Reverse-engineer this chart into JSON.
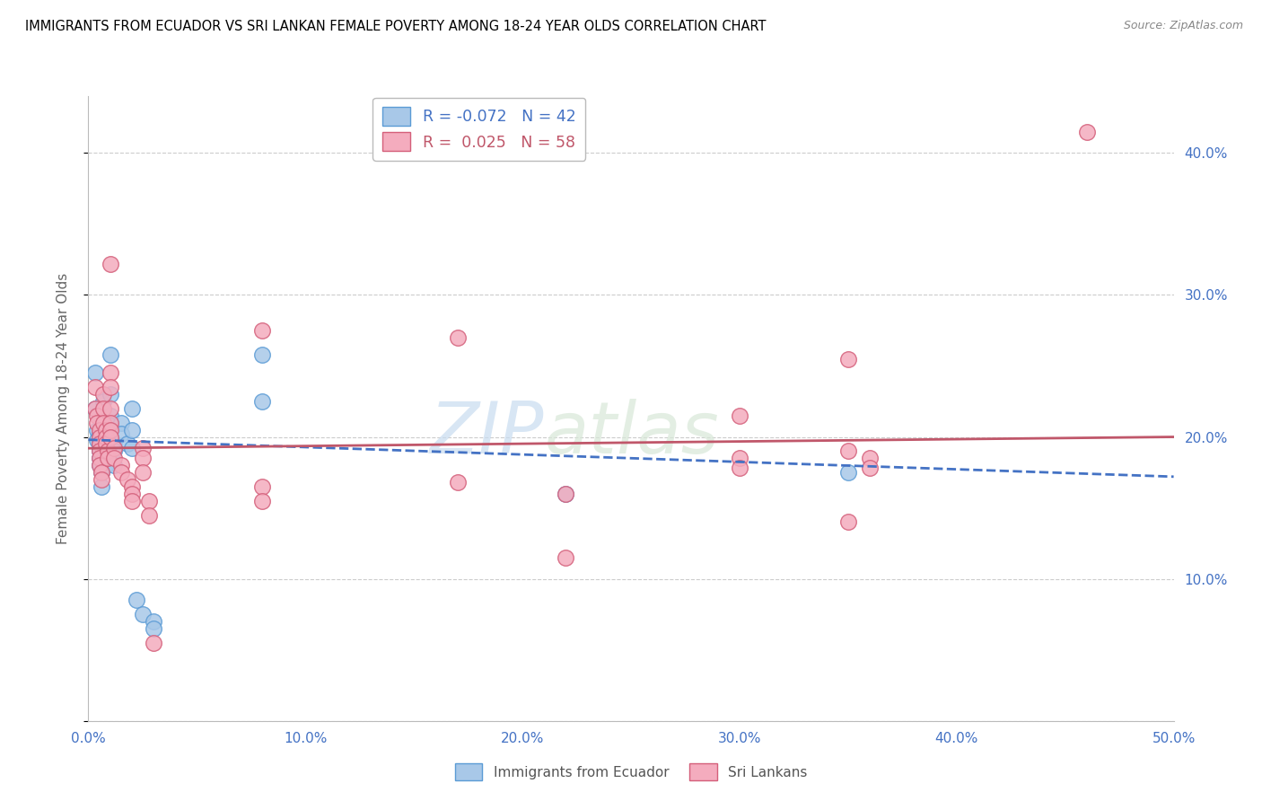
{
  "title": "IMMIGRANTS FROM ECUADOR VS SRI LANKAN FEMALE POVERTY AMONG 18-24 YEAR OLDS CORRELATION CHART",
  "source": "Source: ZipAtlas.com",
  "ylabel": "Female Poverty Among 18-24 Year Olds",
  "xlim": [
    0,
    50
  ],
  "ylim": [
    0,
    44
  ],
  "ecuador_color": "#A8C8E8",
  "srilanka_color": "#F4ACBE",
  "ecuador_edge": "#5B9BD5",
  "srilanka_edge": "#D45F7A",
  "trendline_ecuador_color": "#4472C4",
  "trendline_srilanka_color": "#C0576A",
  "watermark": "ZIPatlas",
  "ecuador_trendline": [
    [
      0,
      19.8
    ],
    [
      50,
      17.2
    ]
  ],
  "srilanka_trendline": [
    [
      0,
      19.2
    ],
    [
      50,
      20.0
    ]
  ],
  "ecuador_points": [
    [
      0.3,
      24.5
    ],
    [
      0.3,
      22.0
    ],
    [
      0.4,
      20.5
    ],
    [
      0.4,
      19.8
    ],
    [
      0.5,
      21.5
    ],
    [
      0.5,
      20.2
    ],
    [
      0.5,
      19.5
    ],
    [
      0.5,
      19.0
    ],
    [
      0.5,
      18.5
    ],
    [
      0.5,
      18.0
    ],
    [
      0.6,
      17.5
    ],
    [
      0.6,
      16.5
    ],
    [
      0.7,
      22.5
    ],
    [
      0.7,
      21.0
    ],
    [
      0.7,
      20.0
    ],
    [
      0.8,
      19.5
    ],
    [
      0.8,
      19.0
    ],
    [
      0.8,
      18.0
    ],
    [
      0.9,
      20.5
    ],
    [
      0.9,
      19.2
    ],
    [
      1.0,
      25.8
    ],
    [
      1.0,
      23.0
    ],
    [
      1.0,
      21.5
    ],
    [
      1.0,
      20.8
    ],
    [
      1.0,
      20.0
    ],
    [
      1.2,
      19.5
    ],
    [
      1.2,
      19.0
    ],
    [
      1.2,
      18.0
    ],
    [
      1.5,
      21.0
    ],
    [
      1.5,
      20.2
    ],
    [
      1.8,
      19.5
    ],
    [
      2.0,
      22.0
    ],
    [
      2.0,
      20.5
    ],
    [
      2.0,
      19.2
    ],
    [
      2.2,
      8.5
    ],
    [
      2.5,
      7.5
    ],
    [
      3.0,
      7.0
    ],
    [
      3.0,
      6.5
    ],
    [
      8.0,
      25.8
    ],
    [
      8.0,
      22.5
    ],
    [
      22.0,
      16.0
    ],
    [
      35.0,
      17.5
    ]
  ],
  "srilanka_points": [
    [
      0.3,
      23.5
    ],
    [
      0.3,
      22.0
    ],
    [
      0.4,
      21.5
    ],
    [
      0.4,
      21.0
    ],
    [
      0.5,
      20.5
    ],
    [
      0.5,
      20.0
    ],
    [
      0.5,
      19.5
    ],
    [
      0.5,
      19.0
    ],
    [
      0.5,
      18.5
    ],
    [
      0.5,
      18.0
    ],
    [
      0.6,
      17.5
    ],
    [
      0.6,
      17.0
    ],
    [
      0.7,
      23.0
    ],
    [
      0.7,
      22.0
    ],
    [
      0.7,
      21.0
    ],
    [
      0.8,
      20.5
    ],
    [
      0.8,
      20.0
    ],
    [
      0.8,
      19.5
    ],
    [
      0.9,
      19.0
    ],
    [
      0.9,
      18.5
    ],
    [
      1.0,
      32.2
    ],
    [
      1.0,
      24.5
    ],
    [
      1.0,
      23.5
    ],
    [
      1.0,
      22.0
    ],
    [
      1.0,
      21.0
    ],
    [
      1.0,
      20.5
    ],
    [
      1.0,
      20.0
    ],
    [
      1.2,
      19.2
    ],
    [
      1.2,
      18.5
    ],
    [
      1.5,
      18.0
    ],
    [
      1.5,
      17.5
    ],
    [
      1.8,
      17.0
    ],
    [
      2.0,
      16.5
    ],
    [
      2.0,
      16.0
    ],
    [
      2.0,
      15.5
    ],
    [
      2.5,
      19.2
    ],
    [
      2.5,
      18.5
    ],
    [
      2.5,
      17.5
    ],
    [
      2.8,
      15.5
    ],
    [
      2.8,
      14.5
    ],
    [
      3.0,
      5.5
    ],
    [
      8.0,
      27.5
    ],
    [
      8.0,
      16.5
    ],
    [
      8.0,
      15.5
    ],
    [
      17.0,
      27.0
    ],
    [
      17.0,
      16.8
    ],
    [
      22.0,
      16.0
    ],
    [
      22.0,
      11.5
    ],
    [
      30.0,
      21.5
    ],
    [
      30.0,
      18.5
    ],
    [
      30.0,
      17.8
    ],
    [
      35.0,
      25.5
    ],
    [
      35.0,
      19.0
    ],
    [
      35.0,
      14.0
    ],
    [
      36.0,
      18.5
    ],
    [
      36.0,
      17.8
    ],
    [
      46.0,
      41.5
    ]
  ]
}
